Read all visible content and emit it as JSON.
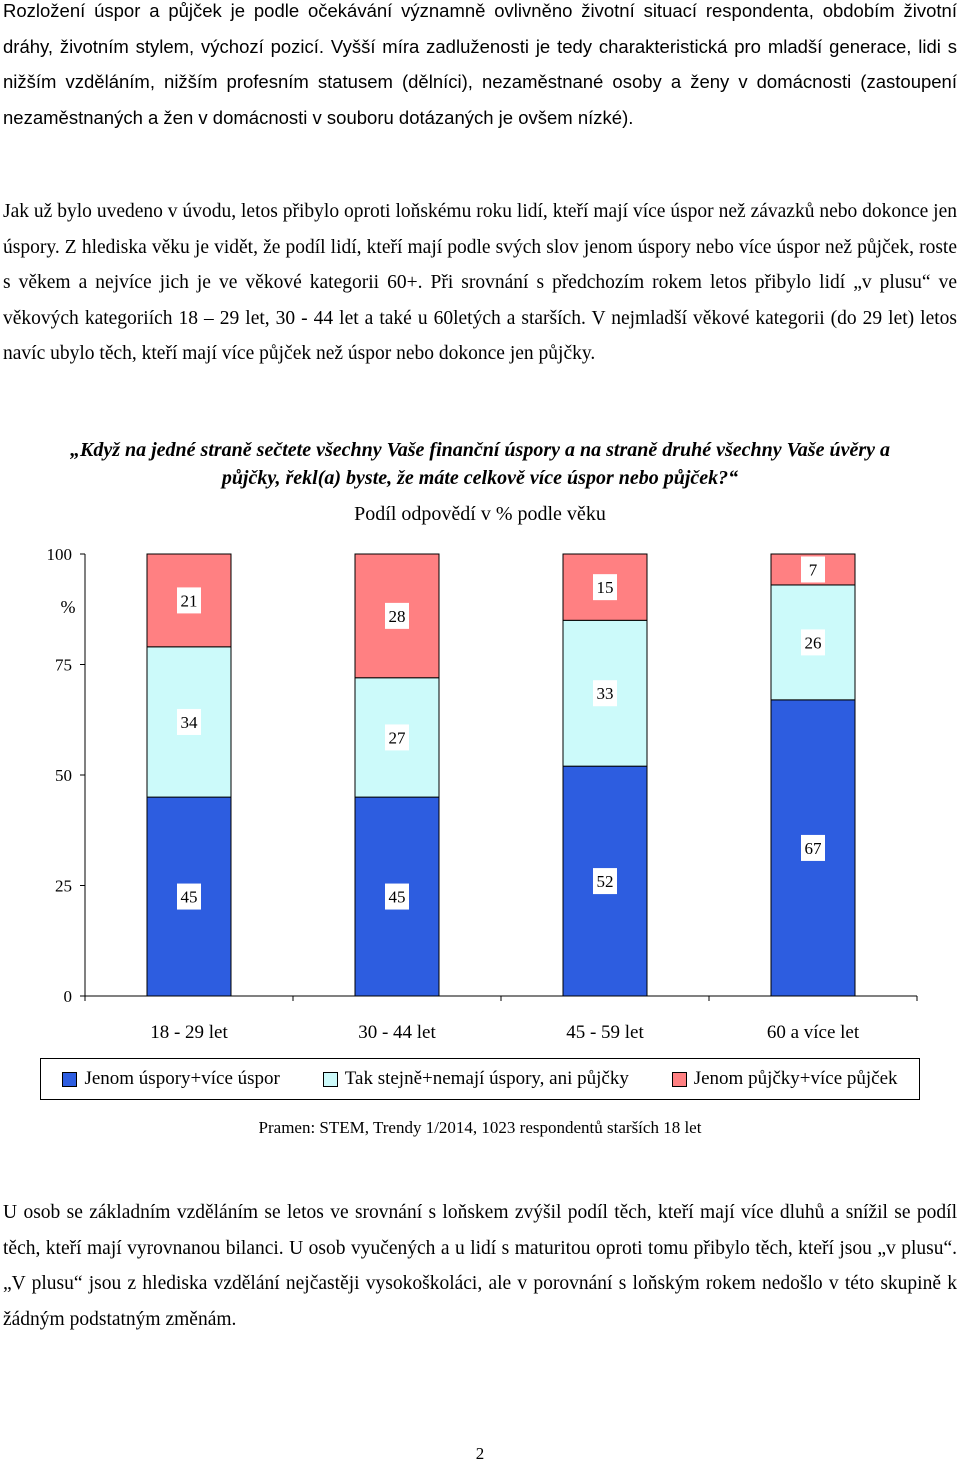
{
  "text": {
    "para1": "Rozložení úspor a půjček je podle očekávání významně ovlivněno životní situací respondenta, obdobím životní dráhy, životním stylem, výchozí pozicí. Vyšší míra zadluženosti je tedy charakteristická pro mladší generace, lidi s nižším vzděláním, nižším profesním statusem (dělníci), nezaměstnané osoby a ženy v domácnosti (zastoupení nezaměstnaných a žen v domácnosti v souboru dotázaných je ovšem nízké).",
    "para2": "Jak už bylo uvedeno v úvodu, letos přibylo oproti loňskému roku lidí, kteří mají více úspor než závazků nebo dokonce jen úspory. Z hlediska věku je vidět, že podíl lidí, kteří mají podle svých slov jenom úspory nebo více úspor než půjček, roste s věkem a nejvíce jich je ve věkové kategorii 60+. Při srovnání s předchozím rokem letos přibylo lidí „v plusu“ ve věkových kategoriích 18 – 29 let, 30 - 44 let a také u 60letých a starších. V nejmladší věkové kategorii (do 29 let) letos navíc ubylo těch, kteří mají více půjček než úspor nebo dokonce jen půjčky.",
    "question": "„Když na jedné straně sečtete všechny Vaše finanční úspory a na straně druhé všechny Vaše úvěry a půjčky, řekl(a) byste, že máte celkově více úspor nebo půjček?“",
    "source": "Pramen: STEM, Trendy 1/2014, 1023 respondentů starších 18 let",
    "para3": "U osob se základním vzděláním se letos ve srovnání s loňskem zvýšil podíl těch, kteří mají více dluhů a snížil se podíl těch, kteří mají vyrovnanou bilanci. U osob vyučených a u lidí s maturitou oproti tomu přibylo těch, kteří jsou „v plusu“. „V plusu“ jsou z hlediska vzdělání nejčastěji vysokoškoláci, ale v porovnání s loňským rokem nedošlo v této skupině k žádným podstatným změnám.",
    "page_number": "2"
  },
  "chart_data": {
    "type": "bar",
    "stacked": true,
    "title": "Podíl odpovědí v % podle věku",
    "ylabel": "%",
    "ylim": [
      0,
      100
    ],
    "yticks": [
      0,
      25,
      50,
      75,
      100
    ],
    "grid": false,
    "legend_position": "bottom",
    "categories": [
      "18 - 29 let",
      "30 - 44 let",
      "45 - 59 let",
      "60 a více let"
    ],
    "series": [
      {
        "name": "Jenom úspory+více úspor",
        "color": "#2d5de0",
        "values": [
          45,
          45,
          52,
          67
        ]
      },
      {
        "name": "Tak stejně+nemají úspory, ani půjčky",
        "color": "#ccfafa",
        "values": [
          34,
          27,
          33,
          26
        ]
      },
      {
        "name": "Jenom půjčky+více půjček",
        "color": "#ff8082",
        "values": [
          21,
          28,
          15,
          7
        ]
      }
    ]
  }
}
